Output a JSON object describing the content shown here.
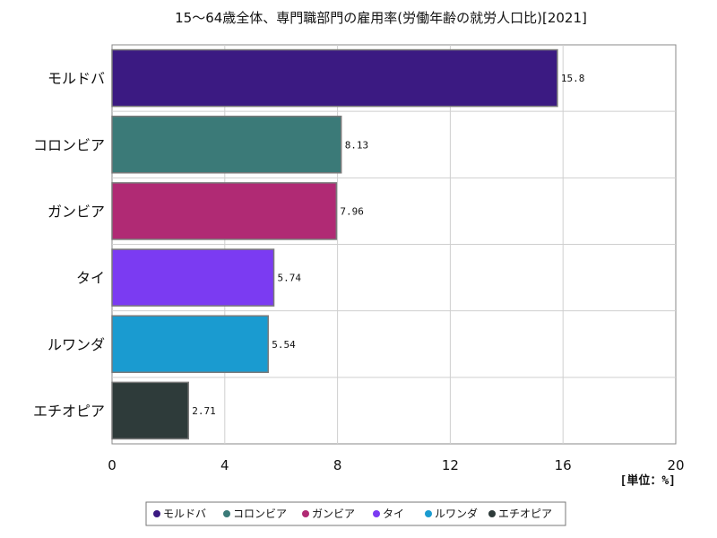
{
  "chart_data": {
    "type": "bar",
    "orientation": "horizontal",
    "title": "15～64歳全体、専門職部門の雇用率(労働年齢の就労人口比)[2021]",
    "categories": [
      "モルドバ",
      "コロンビア",
      "ガンビア",
      "タイ",
      "ルワンダ",
      "エチオピア"
    ],
    "values": [
      15.8,
      8.13,
      7.96,
      5.74,
      5.54,
      2.71
    ],
    "value_labels": [
      "15.8",
      "8.13",
      "7.96",
      "5.74",
      "5.54",
      "2.71"
    ],
    "colors": [
      "#3b1a82",
      "#3b7a78",
      "#b02a74",
      "#7b3bf2",
      "#1a9bd0",
      "#2e3b3a"
    ],
    "xlim": [
      0,
      20
    ],
    "xticks": [
      "0",
      "4",
      "8",
      "12",
      "16",
      "20"
    ],
    "unit_label": "[単位：%]",
    "grid": true,
    "legend_position": "bottom",
    "legend": [
      "モルドバ",
      "コロンビア",
      "ガンビア",
      "タイ",
      "ルワンダ",
      "エチオピア"
    ]
  }
}
